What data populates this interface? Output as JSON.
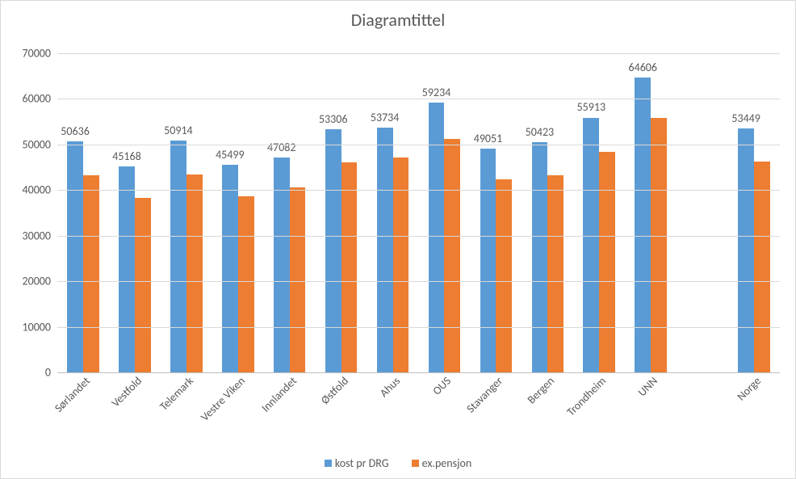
{
  "chart": {
    "type": "bar",
    "title": "Diagramtittel",
    "title_fontsize": 22,
    "title_color": "#595959",
    "plot_background": "#ffffff",
    "outer_border_color": "#d9d9d9",
    "axis_line_color": "#bfbfbf",
    "grid_color": "#d9d9d9",
    "label_color": "#595959",
    "tick_fontsize": 14,
    "datalabel_fontsize": 14,
    "legend_fontsize": 14,
    "xlabel_rotation_deg": -45,
    "y_axis": {
      "min": 0,
      "max": 70000,
      "step": 10000
    },
    "categories": [
      "Sørlandet",
      "Vestfold",
      "Telemark",
      "Vestre Viken",
      "Innlandet",
      "Østfold",
      "Ahus",
      "OUS",
      "Stavanger",
      "Bergen",
      "Trondheim",
      "UNN",
      "",
      "Norge"
    ],
    "series": [
      {
        "name": "kost pr DRG",
        "color": "#5b9bd5",
        "show_datalabels": true,
        "values": [
          50636,
          45168,
          50914,
          45499,
          47082,
          53306,
          53734,
          59234,
          49051,
          50423,
          55913,
          64606,
          null,
          53449
        ]
      },
      {
        "name": "ex.pensjon",
        "color": "#ed7d31",
        "show_datalabels": false,
        "values": [
          43200,
          38300,
          43400,
          38700,
          40500,
          46000,
          47200,
          51200,
          42400,
          43200,
          48400,
          55900,
          null,
          46200
        ]
      }
    ],
    "group_width_ratio": 0.62,
    "bar_gap_ratio": 0.0
  }
}
